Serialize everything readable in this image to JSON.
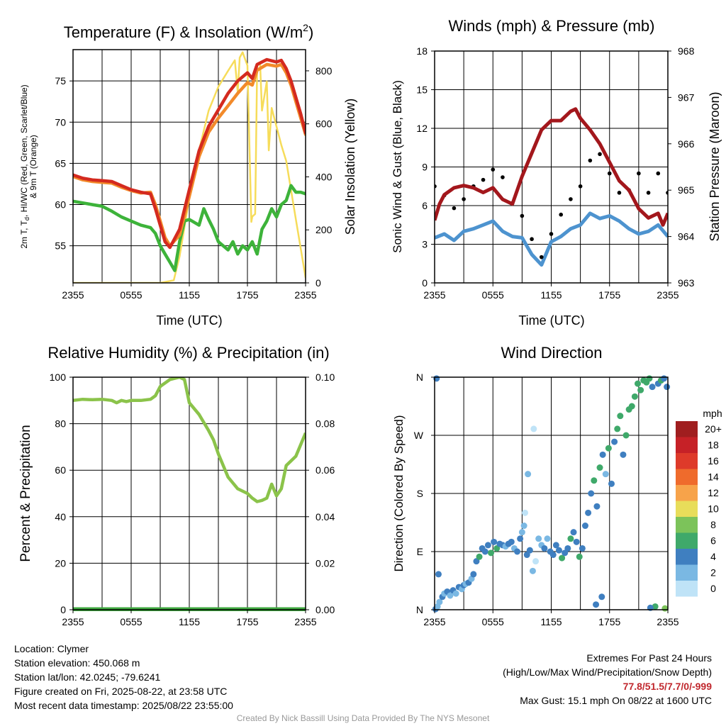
{
  "colors": {
    "temp_red": "#d42a1f",
    "temp_green": "#3db33a",
    "temp_scarlet": "#cc2a1e",
    "temp_blue": "#3a6fcf",
    "temp_orange": "#f28a2a",
    "insolation_yellow": "#f6dc5a",
    "wind_blue": "#4d93cf",
    "gust_black": "#000000",
    "pressure_maroon": "#a3171c",
    "rh_green": "#8bc34a",
    "precip_green": "#3fa83f"
  },
  "chart_data": [
    {
      "type": "line",
      "title": "Temperature (F) & Insolation (W/m²)",
      "xlabel": "Time (UTC)",
      "ylabel": "2m T, Td, HI/WC (Red, Green, Scarlet/Blue) & 9m T (Orange)",
      "ylabel_right": "Solar Insolation (Yellow)",
      "x_ticks": [
        "2355",
        "0555",
        "1155",
        "1755",
        "2355"
      ],
      "y_ticks": [
        55,
        60,
        65,
        70,
        75
      ],
      "y2_ticks": [
        0,
        200,
        400,
        600,
        800
      ],
      "x_hours": [
        0,
        24
      ],
      "ylim": [
        50.5,
        78.8
      ],
      "y2lim": [
        0,
        880
      ],
      "grid": true,
      "series": [
        {
          "name": "2m T",
          "color_key": "temp_red",
          "axis": "left",
          "x": [
            0,
            1,
            2,
            3,
            4,
            5,
            6,
            7,
            8,
            8.5,
            9,
            9.5,
            10,
            11,
            12,
            13,
            14,
            15,
            16,
            17,
            18,
            18.5,
            19,
            20,
            21,
            21.5,
            22,
            22.5,
            23,
            23.5,
            24
          ],
          "y": [
            63.6,
            63.2,
            63,
            62.9,
            62.8,
            62.3,
            61.8,
            61.5,
            61.3,
            59.5,
            57.5,
            55.5,
            54.8,
            57,
            61.8,
            66.5,
            69.5,
            71.5,
            73.5,
            75,
            76,
            75.3,
            77,
            77.6,
            77.3,
            77.5,
            76.5,
            75,
            73,
            71,
            68.7
          ]
        },
        {
          "name": "2m Td",
          "color_key": "temp_green",
          "axis": "left",
          "x": [
            0,
            1,
            2,
            3,
            4,
            5,
            6,
            7,
            8,
            8.5,
            9,
            9.5,
            10,
            10.5,
            11,
            11.5,
            12,
            13,
            13.5,
            14,
            14.5,
            15,
            15.5,
            16,
            16.5,
            17,
            17.5,
            18,
            18.5,
            19,
            19.5,
            20,
            20.5,
            21,
            21.5,
            22,
            22.5,
            23,
            23.5,
            24
          ],
          "y": [
            60.4,
            60.2,
            60,
            59.8,
            59.2,
            58.5,
            58,
            57.5,
            57.2,
            56.5,
            55,
            54,
            53,
            52,
            55.5,
            58,
            58.2,
            57.5,
            59.5,
            58.2,
            57,
            55.5,
            55,
            54.5,
            55.5,
            54,
            55,
            54.5,
            55.5,
            54,
            57,
            58,
            59.5,
            58.5,
            60,
            60.5,
            62.3,
            61.5,
            61.5,
            61.3
          ]
        },
        {
          "name": "9m T",
          "color_key": "temp_orange",
          "axis": "left",
          "x": [
            0,
            1,
            2,
            3,
            4,
            5,
            6,
            7,
            8,
            8.5,
            9,
            9.5,
            10,
            11,
            12,
            13,
            14,
            15,
            16,
            17,
            18,
            18.5,
            19,
            20,
            21,
            21.5,
            22,
            22.5,
            23,
            23.5,
            24
          ],
          "y": [
            63.4,
            63,
            62.8,
            62.7,
            62.6,
            62.1,
            61.7,
            61.4,
            61.5,
            60,
            58,
            56,
            55,
            56.3,
            61,
            65.8,
            68.8,
            70.5,
            72,
            73.5,
            74.8,
            74.5,
            76.3,
            77,
            76.8,
            77,
            76,
            74.5,
            72.5,
            70.5,
            68.5
          ]
        },
        {
          "name": "Solar Insolation",
          "color_key": "insolation_yellow",
          "axis": "right",
          "x": [
            0,
            9,
            10.4,
            11,
            12,
            13,
            14,
            15,
            16,
            16.7,
            17,
            17.2,
            17.5,
            18,
            18.4,
            18.5,
            18.8,
            19,
            19.3,
            19.5,
            20,
            20.2,
            20.5,
            21,
            21.5,
            22,
            23,
            24
          ],
          "y": [
            0,
            0,
            10,
            100,
            320,
            500,
            650,
            740,
            800,
            840,
            720,
            850,
            870,
            820,
            230,
            250,
            260,
            820,
            830,
            650,
            760,
            500,
            660,
            590,
            520,
            460,
            240,
            20
          ]
        }
      ]
    },
    {
      "type": "line",
      "title": "Winds (mph) & Pressure (mb)",
      "xlabel": "Time (UTC)",
      "ylabel": "Sonic Wind & Gust (Blue, Black)",
      "ylabel_right": "Station Pressure (Maroon)",
      "x_ticks": [
        "2355",
        "0555",
        "1155",
        "1755",
        "2355"
      ],
      "y_ticks": [
        0,
        3,
        6,
        9,
        12,
        15,
        18
      ],
      "y2_ticks": [
        963,
        964,
        965,
        966,
        967,
        968
      ],
      "ylim": [
        0,
        18
      ],
      "y2lim": [
        963,
        968
      ],
      "grid": true,
      "series": [
        {
          "name": "Sonic Wind",
          "color_key": "wind_blue",
          "axis": "left",
          "x": [
            0,
            1,
            2,
            3,
            4,
            5,
            6,
            7,
            8,
            9,
            10,
            11,
            12,
            13,
            14,
            15,
            16,
            17,
            18,
            19,
            20,
            21,
            22,
            23,
            24
          ],
          "y": [
            3.5,
            3.8,
            3.3,
            4,
            4.2,
            4.5,
            4.8,
            4,
            3.6,
            3.5,
            2.2,
            1.4,
            3.2,
            3.6,
            4.2,
            4.5,
            5.4,
            5,
            5.2,
            4.8,
            4.2,
            3.8,
            4,
            4.5,
            3.6
          ]
        },
        {
          "name": "Gust",
          "color_key": "gust_black",
          "axis": "left",
          "x": [
            0,
            1,
            2,
            3,
            4,
            5,
            6,
            7,
            8,
            9,
            10,
            11,
            12,
            13,
            14,
            15,
            16,
            17,
            18,
            19,
            20,
            21,
            22,
            23,
            24
          ],
          "y": [
            7.5,
            6.8,
            5.8,
            6.5,
            7.5,
            8,
            8.8,
            8.2,
            6.2,
            5.2,
            3.4,
            2,
            3.8,
            5.3,
            6.5,
            7.5,
            9.5,
            10,
            8.5,
            7,
            7.2,
            8.5,
            7,
            8.5,
            7
          ]
        },
        {
          "name": "Station Pressure",
          "color_key": "pressure_maroon",
          "axis": "right",
          "x": [
            0,
            0.5,
            1,
            2,
            3,
            4,
            5,
            6,
            7,
            8,
            9,
            10,
            11,
            12,
            13,
            14,
            14.5,
            15,
            16,
            17,
            18,
            19,
            20,
            21,
            22,
            23,
            23.5,
            24
          ],
          "y": [
            964.35,
            964.7,
            964.9,
            965.05,
            965.1,
            965.05,
            964.95,
            965.05,
            964.8,
            964.7,
            965.3,
            965.8,
            966.3,
            966.5,
            966.5,
            966.7,
            966.75,
            966.55,
            966.3,
            966,
            965.6,
            965.2,
            965.0,
            964.6,
            964.4,
            964.5,
            964.25,
            964.5
          ]
        }
      ]
    },
    {
      "type": "line",
      "title": "Relative Humidity (%) & Precipitation (in)",
      "xlabel": "",
      "ylabel": "Percent & Precipitation",
      "x_ticks": [
        "2355",
        "0555",
        "1155",
        "1755",
        "2355"
      ],
      "y_ticks": [
        0,
        20,
        40,
        60,
        80,
        100
      ],
      "y2_ticks": [
        "0.00",
        "0.02",
        "0.04",
        "0.06",
        "0.08",
        "0.10"
      ],
      "ylim": [
        0,
        100
      ],
      "y2lim": [
        0,
        0.1
      ],
      "grid": true,
      "series": [
        {
          "name": "Relative Humidity",
          "color_key": "rh_green",
          "axis": "left",
          "x": [
            0,
            1,
            2,
            3,
            4,
            4.5,
            5,
            5.5,
            6,
            7,
            8,
            8.5,
            9,
            10,
            11,
            11.5,
            12,
            13,
            14,
            14.5,
            15,
            16,
            17,
            18,
            18.5,
            19,
            19.5,
            20,
            20.5,
            21,
            21.5,
            22,
            23,
            24
          ],
          "y": [
            90,
            90.5,
            90.3,
            90.5,
            90,
            89,
            90,
            89.5,
            90,
            90,
            90.5,
            92,
            96,
            99,
            100,
            99,
            89,
            84,
            77,
            73,
            67,
            57,
            52,
            50,
            48,
            46.5,
            47,
            48,
            54,
            49,
            52,
            62,
            66,
            76
          ]
        },
        {
          "name": "Precipitation",
          "color_key": "precip_green",
          "axis": "right",
          "x": [
            0,
            24
          ],
          "y": [
            0,
            0
          ]
        }
      ]
    },
    {
      "type": "scatter",
      "title": "Wind Direction",
      "xlabel": "",
      "ylabel": "Direction (Colored By Speed)",
      "x_ticks": [
        "2355",
        "0555",
        "1155",
        "1755",
        "2355"
      ],
      "y_ticks": [
        "N",
        "E",
        "S",
        "W",
        "N"
      ],
      "ylim": [
        0,
        360
      ],
      "grid": true,
      "colorbar": {
        "label": "mph",
        "levels": [
          "20+",
          "18",
          "16",
          "14",
          "12",
          "10",
          "8",
          "6",
          "4",
          "2",
          "0"
        ],
        "colors": [
          "#a01e1f",
          "#c62127",
          "#de3a2a",
          "#ef6b2c",
          "#f7a34a",
          "#e8dd5a",
          "#7cc35a",
          "#3fa96a",
          "#3f7fc0",
          "#7ab8e3",
          "#bfe3f7"
        ]
      },
      "series": [
        {
          "name": "Wind Direction",
          "x": [
            0.1,
            0.2,
            0.3,
            0.5,
            0.8,
            1.0,
            1.3,
            1.6,
            1.9,
            2.2,
            2.5,
            2.8,
            3.0,
            3.2,
            3.5,
            3.8,
            4.0,
            4.3,
            4.6,
            4.9,
            5.2,
            5.5,
            5.8,
            6.1,
            6.4,
            6.7,
            7.0,
            7.3,
            7.6,
            7.9,
            8.2,
            8.5,
            8.8,
            9.0,
            9.2,
            9.5,
            9.8,
            10.1,
            10.4,
            10.7,
            11.0,
            11.3,
            11.6,
            11.9,
            12.2,
            12.5,
            12.8,
            13.1,
            13.4,
            13.7,
            14.0,
            14.3,
            14.6,
            14.9,
            15.2,
            15.5,
            15.8,
            16.1,
            16.4,
            16.7,
            17.0,
            17.3,
            17.6,
            17.9,
            18.2,
            18.5,
            18.8,
            19.1,
            19.4,
            19.7,
            20.0,
            20.3,
            20.6,
            20.9,
            21.2,
            21.5,
            21.8,
            22.1,
            22.4,
            22.7,
            23.0,
            23.3,
            23.6,
            23.9,
            0.4,
            9.3,
            9.6,
            10.2,
            16.6,
            17.2,
            22.2,
            23.7
          ],
          "y": [
            1,
            358,
            5,
            12,
            20,
            25,
            28,
            22,
            30,
            25,
            35,
            32,
            38,
            40,
            42,
            48,
            55,
            75,
            82,
            95,
            90,
            100,
            88,
            105,
            95,
            102,
            100,
            98,
            102,
            105,
            95,
            90,
            110,
            120,
            130,
            85,
            92,
            60,
            75,
            110,
            100,
            95,
            110,
            90,
            85,
            100,
            92,
            80,
            88,
            95,
            110,
            120,
            105,
            82,
            95,
            130,
            150,
            180,
            200,
            160,
            220,
            240,
            210,
            250,
            195,
            260,
            280,
            300,
            240,
            270,
            310,
            315,
            330,
            350,
            340,
            355,
            352,
            358,
            345,
            5,
            350,
            355,
            358,
            345,
            55,
            150,
            210,
            280,
            8,
            20,
            3,
            2
          ],
          "speed": [
            4,
            4,
            2,
            3,
            4,
            3,
            4,
            2,
            4,
            3,
            4,
            3,
            4,
            2,
            4,
            3,
            4,
            4,
            6,
            4,
            5,
            4,
            6,
            4,
            6,
            4,
            5,
            3,
            4,
            4,
            2,
            4,
            4,
            3,
            2,
            4,
            4,
            2,
            1,
            2,
            3,
            4,
            2,
            4,
            5,
            4,
            4,
            6,
            4,
            5,
            6,
            4,
            4,
            6,
            4,
            4,
            5,
            4,
            6,
            4,
            6,
            4,
            3,
            7,
            4,
            4,
            6,
            7,
            4,
            6,
            7,
            6,
            7,
            7,
            6,
            6,
            7,
            6,
            4,
            7,
            4,
            6,
            5,
            4,
            4,
            1,
            2,
            1,
            4,
            5,
            4,
            8
          ]
        }
      ]
    }
  ],
  "info_left": {
    "location": "Location: Clymer",
    "elevation": "Station elevation: 450.068 m",
    "latlon": "Station lat/lon: 42.0245; -79.6241",
    "created": "Figure created on Fri, 2025-08-22, at 23:58 UTC",
    "recent": "Most recent data timestamp: 2025/08/22 23:55:00"
  },
  "info_right": {
    "heading": "Extremes For Past 24 Hours",
    "legend": "(High/Low/Max Wind/Precipitation/Snow Depth)",
    "values": "77.8/51.5/7.7/0/-999",
    "gust": "Max Gust: 15.1 mph On 08/22 at 1600 UTC"
  },
  "credit": "Created By Nick Bassill Using Data Provided By The NYS Mesonet"
}
